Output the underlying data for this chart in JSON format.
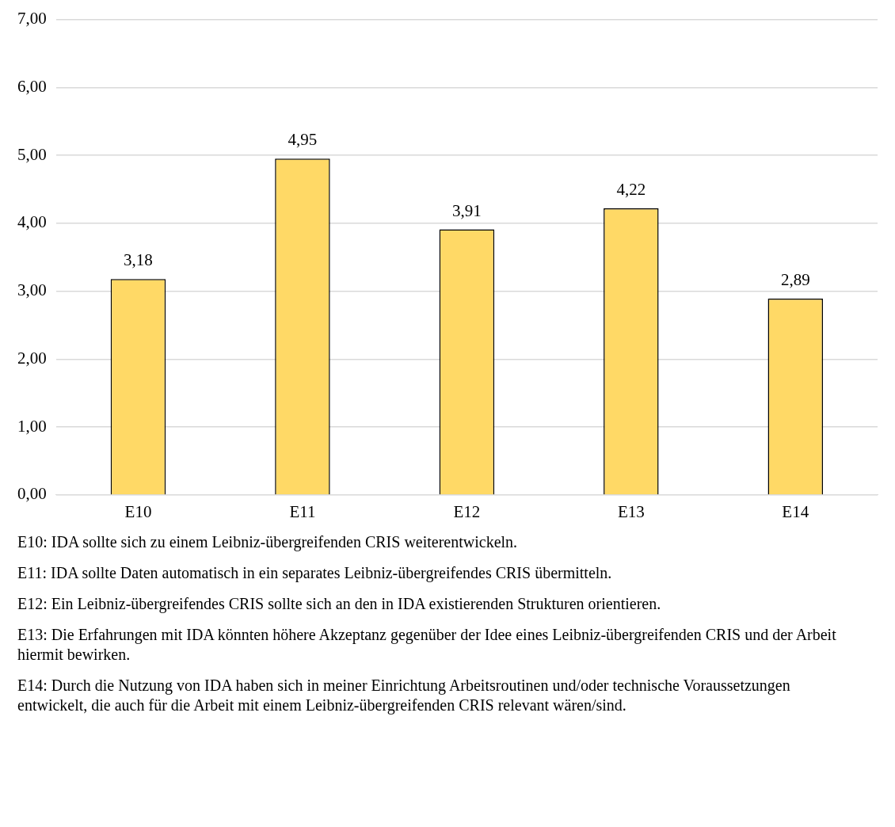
{
  "chart_data": {
    "type": "bar",
    "categories": [
      "E10",
      "E11",
      "E12",
      "E13",
      "E14"
    ],
    "values": [
      3.18,
      4.95,
      3.91,
      4.22,
      2.89
    ],
    "value_labels": [
      "3,18",
      "4,95",
      "3,91",
      "4,22",
      "2,89"
    ],
    "color": "#ffd966",
    "ylim": [
      0,
      7
    ],
    "yticks": [
      {
        "value": 0,
        "label": "0,00"
      },
      {
        "value": 1,
        "label": "1,00"
      },
      {
        "value": 2,
        "label": "2,00"
      },
      {
        "value": 3,
        "label": "3,00"
      },
      {
        "value": 4,
        "label": "4,00"
      },
      {
        "value": 5,
        "label": "5,00"
      },
      {
        "value": 6,
        "label": "6,00"
      },
      {
        "value": 7,
        "label": "7,00"
      }
    ],
    "grid": "y",
    "legend": false,
    "annotations": [
      "E10: IDA sollte sich zu einem Leibniz-übergreifenden CRIS weiterentwickeln.",
      "E11: IDA sollte Daten automatisch in ein separates Leibniz-übergreifendes CRIS übermitteln.",
      "E12: Ein Leibniz-übergreifendes CRIS sollte sich an den in IDA existierenden Strukturen orientieren.",
      "E13: Die Erfahrungen mit IDA könnten höhere Akzeptanz gegenüber der Idee eines Leibniz-übergreifenden CRIS und der Arbeit hiermit bewirken.",
      "E14: Durch die Nutzung von IDA haben sich in meiner Einrichtung Arbeitsroutinen und/oder technische Voraussetzungen entwickelt, die auch für die Arbeit mit einem Leibniz-übergreifenden CRIS relevant wären/sind."
    ]
  }
}
